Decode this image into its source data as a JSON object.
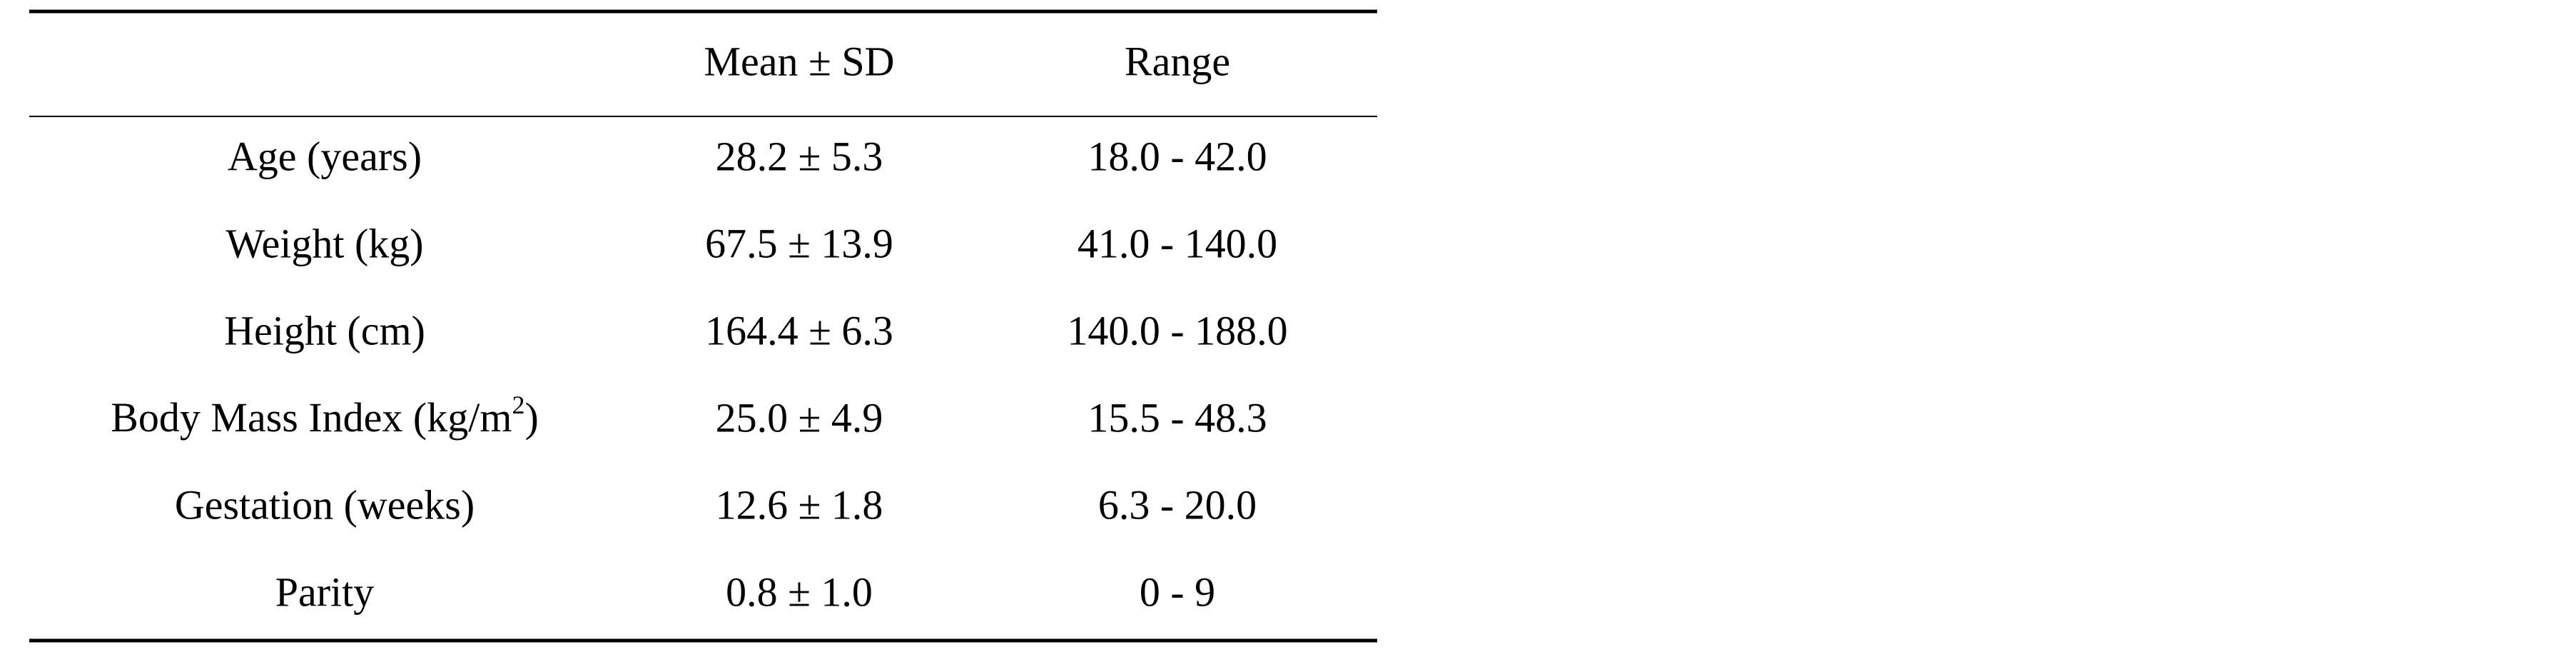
{
  "table": {
    "columns": [
      "Mean ± SD",
      "Range"
    ],
    "rows": [
      {
        "label": "Age (years)",
        "mean": "28.2 ± 5.3",
        "range": "18.0 - 42.0"
      },
      {
        "label": "Weight (kg)",
        "mean": "67.5 ± 13.9",
        "range": "41.0 - 140.0"
      },
      {
        "label": "Height (cm)",
        "mean": "164.4 ± 6.3",
        "range": "140.0 - 188.0"
      },
      {
        "label": "Body Mass Index (kg/m",
        "label_sup": "2",
        "label_end": ")",
        "mean": "25.0 ± 4.9",
        "range": "15.5 - 48.3"
      },
      {
        "label": "Gestation (weeks)",
        "mean": "12.6 ± 1.8",
        "range": "6.3 - 20.0"
      },
      {
        "label": "Parity",
        "mean": "0.8 ± 1.0",
        "range": "0 - 9"
      }
    ]
  }
}
